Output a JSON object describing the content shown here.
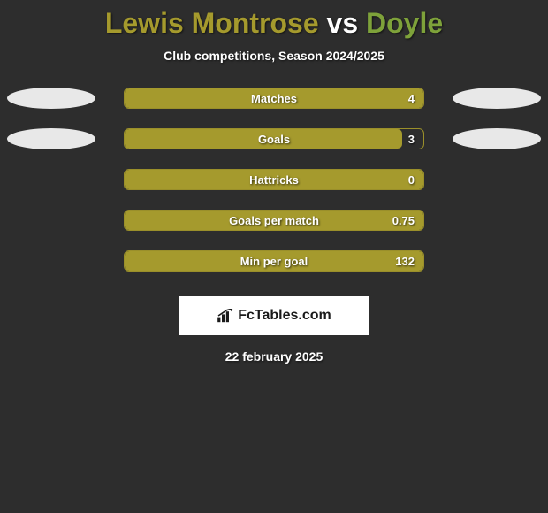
{
  "title": {
    "player1": "Lewis Montrose",
    "vs": " vs ",
    "player2": "Doyle",
    "player1_color": "#a59a2d",
    "vs_color": "#ffffff",
    "player2_color": "#7ea23a"
  },
  "subtitle": "Club competitions, Season 2024/2025",
  "colors": {
    "bar_fill": "#a59a2d",
    "bar_border": "#9a8f2a",
    "ellipse_left": "#e8e8e8",
    "ellipse_right": "#e8e8e8",
    "background": "#2d2d2d"
  },
  "stats": [
    {
      "label": "Matches",
      "value": "4",
      "fill_pct": 100,
      "show_ellipses": true
    },
    {
      "label": "Goals",
      "value": "3",
      "fill_pct": 93,
      "show_ellipses": true
    },
    {
      "label": "Hattricks",
      "value": "0",
      "fill_pct": 100,
      "show_ellipses": false
    },
    {
      "label": "Goals per match",
      "value": "0.75",
      "fill_pct": 100,
      "show_ellipses": false
    },
    {
      "label": "Min per goal",
      "value": "132",
      "fill_pct": 100,
      "show_ellipses": false
    }
  ],
  "branding": {
    "text": "FcTables.com"
  },
  "date": "22 february 2025"
}
